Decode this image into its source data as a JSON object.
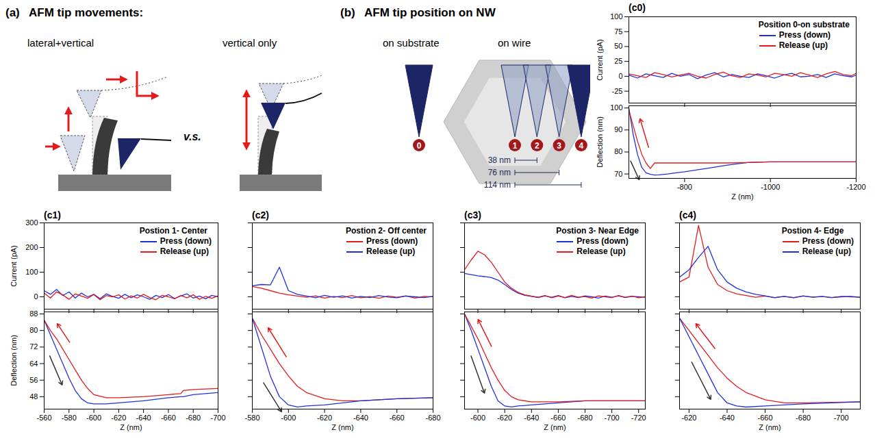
{
  "panel_a": {
    "label": "(a)",
    "title": "AFM tip movements:",
    "left": "lateral+vertical",
    "right": "vertical only",
    "between": "v.s."
  },
  "panel_b": {
    "label": "(b)",
    "title": "AFM tip position on NW",
    "groups": [
      "on substrate",
      "on wire"
    ],
    "positions": [
      "0",
      "1",
      "2",
      "3",
      "4"
    ],
    "distances": [
      {
        "value": 38,
        "label": "38 nm"
      },
      {
        "value": 76,
        "label": "76 nm"
      },
      {
        "value": 114,
        "label": "114 nm"
      }
    ]
  },
  "chart_data": [
    {
      "type": "line",
      "panel_label": "(c0)",
      "title": "Position 0-on substrate",
      "y_label": "Current (pA)",
      "legend": "top-right",
      "tick_labels": "y",
      "x": [
        -670,
        -690,
        -710,
        -730,
        -750,
        -770,
        -790,
        -810,
        -830,
        -850,
        -870,
        -890,
        -910,
        -930,
        -950,
        -970,
        -990,
        -1010,
        -1030,
        -1050,
        -1070,
        -1090,
        -1110,
        -1130,
        -1150,
        -1170,
        -1190,
        -1200
      ],
      "series": [
        {
          "name": "Press (down)",
          "color": "#1f30e0",
          "values": [
            2,
            -3,
            4,
            1,
            -2,
            5,
            0,
            3,
            -4,
            2,
            6,
            -1,
            3,
            0,
            -2,
            4,
            1,
            -3,
            2,
            5,
            -1,
            0,
            3,
            -2,
            4,
            1,
            -1,
            2
          ]
        },
        {
          "name": "Release (up)",
          "color": "#e41a1c",
          "values": [
            4,
            1,
            -2,
            6,
            3,
            -1,
            2,
            5,
            0,
            -3,
            3,
            7,
            1,
            -2,
            4,
            2,
            -1,
            5,
            3,
            0,
            6,
            2,
            -2,
            4,
            8,
            3,
            1,
            5
          ]
        }
      ],
      "xlim": [
        -670,
        -1200
      ],
      "xticks": [
        -800,
        -1000,
        -1200
      ],
      "ylim": [
        -45,
        100
      ],
      "yticks": [
        -25,
        0,
        25,
        50,
        75,
        100
      ]
    },
    {
      "type": "line",
      "x_label": "Z (nm)",
      "y_label": "Deflection (nm)",
      "x": [
        -670,
        -680,
        -690,
        -700,
        -710,
        -720,
        -730,
        -740,
        -760,
        -780,
        -800,
        -850,
        -900,
        -950,
        -1000,
        -1100,
        -1200
      ],
      "series": [
        {
          "color": "#1f30e0",
          "values": [
            100,
            88,
            79,
            73,
            70.5,
            69.8,
            69.5,
            69.6,
            70,
            70.5,
            71,
            72.5,
            74,
            75.3,
            75.5,
            75.5,
            75.5
          ]
        },
        {
          "color": "#e41a1c",
          "values": [
            99,
            92,
            85,
            79,
            75,
            72.5,
            75,
            75,
            75,
            75,
            75,
            75,
            75,
            75.2,
            75.5,
            75.5,
            75.5
          ]
        }
      ],
      "xlim": [
        -670,
        -1200
      ],
      "xticks": [
        -800,
        -1000,
        -1200
      ],
      "ylim": [
        68,
        101
      ],
      "yticks": [
        70,
        80,
        90,
        100
      ]
    },
    {
      "type": "line",
      "panel_label": "(c1)",
      "title": "Postion 1- Center",
      "y_label": "Current (pA)",
      "legend": "top-right",
      "tick_labels": "y",
      "x": [
        -560,
        -565,
        -570,
        -575,
        -580,
        -585,
        -590,
        -595,
        -600,
        -605,
        -610,
        -615,
        -620,
        -625,
        -630,
        -635,
        -640,
        -645,
        -650,
        -655,
        -660,
        -665,
        -670,
        -675,
        -680,
        -685,
        -690,
        -695,
        -700
      ],
      "series": [
        {
          "name": "Press (down)",
          "color": "#1f30e0",
          "values": [
            25,
            10,
            30,
            5,
            20,
            -5,
            15,
            0,
            10,
            -8,
            12,
            2,
            -6,
            10,
            -4,
            8,
            0,
            -10,
            6,
            -3,
            9,
            -7,
            4,
            12,
            -5,
            3,
            -8,
            6,
            0
          ]
        },
        {
          "name": "Release (up)",
          "color": "#e41a1c",
          "values": [
            15,
            -5,
            20,
            8,
            -10,
            12,
            3,
            -6,
            9,
            -12,
            5,
            0,
            8,
            -9,
            4,
            -5,
            10,
            -3,
            -12,
            6,
            0,
            -8,
            5,
            -4,
            8,
            -10,
            2,
            -6,
            4
          ]
        }
      ],
      "xlim": [
        -560,
        -700
      ],
      "xticks": [
        -560,
        -580,
        -600,
        -620,
        -640,
        -660,
        -680,
        -700
      ],
      "ylim": [
        -50,
        300
      ],
      "yticks": [
        0,
        100,
        200,
        300
      ]
    },
    {
      "type": "line",
      "x_label": "Z (nm)",
      "y_label": "Deflection (nm)",
      "x": [
        -560,
        -565,
        -570,
        -575,
        -580,
        -585,
        -590,
        -595,
        -600,
        -610,
        -620,
        -640,
        -660,
        -670,
        -672,
        -680,
        -700
      ],
      "series": [
        {
          "color": "#1f30e0",
          "values": [
            85,
            78,
            71,
            64,
            57,
            51,
            47,
            45,
            44.5,
            44.5,
            45,
            46,
            47.5,
            48,
            48,
            49,
            50
          ]
        },
        {
          "color": "#e41a1c",
          "values": [
            85,
            80,
            76,
            71,
            66,
            61,
            56,
            52,
            49,
            47.5,
            47.5,
            48,
            49,
            49.5,
            51,
            51.5,
            52
          ]
        }
      ],
      "xlim": [
        -560,
        -700
      ],
      "xticks": [
        -560,
        -580,
        -600,
        -620,
        -640,
        -660,
        -680,
        -700
      ],
      "ylim": [
        42,
        89
      ],
      "yticks": [
        48,
        56,
        64,
        72,
        80,
        88
      ]
    },
    {
      "type": "line",
      "panel_label": "(c2)",
      "title": "Postion 2- Off center",
      "legend": "top-right",
      "tick_labels": false,
      "x": [
        -580,
        -585,
        -590,
        -595,
        -600,
        -605,
        -610,
        -615,
        -620,
        -625,
        -630,
        -635,
        -640,
        -645,
        -650,
        -655,
        -660,
        -665,
        -670,
        -675,
        -680
      ],
      "series": [
        {
          "name": "Press (down)",
          "color": "#e41a1c",
          "values": [
            42,
            35,
            25,
            15,
            8,
            3,
            -2,
            4,
            -5,
            2,
            -3,
            5,
            -4,
            1,
            -6,
            3,
            -2,
            4,
            -5,
            2,
            0
          ]
        },
        {
          "name": "Release (up)",
          "color": "#1f30e0",
          "values": [
            45,
            50,
            48,
            120,
            25,
            10,
            3,
            -4,
            6,
            -2,
            4,
            -5,
            2,
            -3,
            5,
            -1,
            -4,
            3,
            0,
            -3,
            2
          ]
        }
      ],
      "xlim": [
        -580,
        -680
      ],
      "xticks": [
        -580,
        -600,
        -620,
        -640,
        -660,
        -680
      ],
      "ylim": [
        -50,
        300
      ],
      "yticks": [
        0,
        100,
        200,
        300
      ]
    },
    {
      "type": "line",
      "x_label": "Z (nm)",
      "tick_labels": "x",
      "x": [
        -580,
        -585,
        -590,
        -595,
        -600,
        -605,
        -610,
        -620,
        -630,
        -640,
        -650,
        -660,
        -680
      ],
      "series": [
        {
          "color": "#e41a1c",
          "values": [
            86,
            78,
            71,
            64,
            58,
            53,
            50,
            47,
            46,
            46,
            46.5,
            47,
            47.5
          ]
        },
        {
          "color": "#1f30e0",
          "values": [
            86,
            72,
            58,
            48,
            44,
            43,
            43.5,
            44,
            45,
            46,
            46.5,
            47,
            47.5
          ]
        }
      ],
      "xlim": [
        -580,
        -680
      ],
      "xticks": [
        -580,
        -600,
        -620,
        -640,
        -660,
        -680
      ],
      "ylim": [
        42,
        89
      ],
      "yticks": [
        48,
        56,
        64,
        72,
        80,
        88
      ]
    },
    {
      "type": "line",
      "panel_label": "(c3)",
      "title": "Postion 3- Near Edge",
      "legend": "top-right",
      "tick_labels": false,
      "x": [
        -590,
        -595,
        -600,
        -605,
        -610,
        -615,
        -620,
        -625,
        -630,
        -635,
        -640,
        -645,
        -650,
        -655,
        -660,
        -665,
        -670,
        -675,
        -680,
        -685,
        -690,
        -695,
        -700,
        -705,
        -710,
        -715,
        -720,
        -725
      ],
      "series": [
        {
          "name": "Press (down)",
          "color": "#1f30e0",
          "values": [
            95,
            90,
            85,
            82,
            78,
            68,
            50,
            30,
            15,
            6,
            2,
            -3,
            4,
            -2,
            5,
            -4,
            2,
            -3,
            4,
            0,
            -5,
            3,
            -2,
            4,
            -3,
            2,
            0,
            -2
          ]
        },
        {
          "name": "Release (up)",
          "color": "#e41a1c",
          "values": [
            110,
            150,
            185,
            170,
            140,
            100,
            60,
            35,
            18,
            8,
            3,
            -2,
            5,
            -4,
            3,
            -3,
            6,
            -2,
            1,
            -5,
            4,
            0,
            -3,
            5,
            -2,
            3,
            -4,
            1
          ]
        }
      ],
      "xlim": [
        -590,
        -725
      ],
      "xticks": [
        -600,
        -620,
        -640,
        -660,
        -680,
        -700,
        -720
      ],
      "ylim": [
        -50,
        300
      ],
      "yticks": [
        0,
        100,
        200,
        300
      ]
    },
    {
      "type": "line",
      "x_label": "Z (nm)",
      "tick_labels": "x",
      "x": [
        -590,
        -595,
        -600,
        -605,
        -610,
        -615,
        -620,
        -625,
        -630,
        -640,
        -660,
        -680,
        -700,
        -725
      ],
      "series": [
        {
          "color": "#1f30e0",
          "values": [
            88,
            80,
            71,
            62,
            53,
            46,
            43.5,
            43,
            43.5,
            44,
            45,
            46,
            46,
            46
          ]
        },
        {
          "color": "#e41a1c",
          "values": [
            88,
            82,
            76,
            69,
            62,
            56,
            51,
            48,
            46.5,
            45.5,
            45.5,
            46,
            46,
            46
          ]
        }
      ],
      "xlim": [
        -590,
        -725
      ],
      "xticks": [
        -600,
        -620,
        -640,
        -660,
        -680,
        -700,
        -720
      ],
      "ylim": [
        42,
        89
      ],
      "yticks": [
        48,
        56,
        64,
        72,
        80,
        88
      ]
    },
    {
      "type": "line",
      "panel_label": "(c4)",
      "title": "Postion 4- Edge",
      "legend": "top-right",
      "tick_labels": false,
      "x": [
        -615,
        -620,
        -625,
        -630,
        -635,
        -640,
        -645,
        -650,
        -655,
        -660,
        -665,
        -670,
        -675,
        -680,
        -685,
        -690,
        -695,
        -700,
        -705,
        -710
      ],
      "series": [
        {
          "name": "Press (down)",
          "color": "#e41a1c",
          "values": [
            60,
            80,
            290,
            120,
            50,
            25,
            12,
            5,
            -2,
            3,
            -4,
            2,
            -3,
            4,
            -2,
            1,
            -3,
            2,
            0,
            -2
          ]
        },
        {
          "name": "Release (up)",
          "color": "#1f30e0",
          "values": [
            80,
            110,
            160,
            205,
            110,
            60,
            35,
            20,
            10,
            4,
            -3,
            2,
            -4,
            3,
            -1,
            2,
            -3,
            0,
            2,
            -2
          ]
        }
      ],
      "xlim": [
        -615,
        -710
      ],
      "xticks": [
        -620,
        -640,
        -660,
        -680,
        -700
      ],
      "ylim": [
        -50,
        300
      ],
      "yticks": [
        0,
        100,
        200,
        300
      ]
    },
    {
      "type": "line",
      "x_label": "Z (nm)",
      "tick_labels": "x",
      "x": [
        -615,
        -620,
        -625,
        -630,
        -635,
        -640,
        -645,
        -650,
        -660,
        -670,
        -680,
        -710
      ],
      "series": [
        {
          "color": "#e41a1c",
          "values": [
            86,
            80,
            74,
            68,
            62,
            57,
            53,
            50,
            46.5,
            45,
            45,
            45.5
          ]
        },
        {
          "color": "#1f30e0",
          "values": [
            86,
            77,
            68,
            59,
            50,
            45,
            43.5,
            43,
            43.5,
            44,
            44.5,
            45.5
          ]
        }
      ],
      "xlim": [
        -615,
        -710
      ],
      "xticks": [
        -620,
        -640,
        -660,
        -680,
        -700
      ],
      "ylim": [
        42,
        89
      ],
      "yticks": [
        48,
        56,
        64,
        72,
        80,
        88
      ]
    }
  ]
}
